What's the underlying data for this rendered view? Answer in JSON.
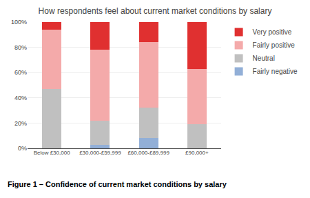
{
  "chart_data": {
    "type": "bar",
    "title": "How respondents feel about current market conditions by salary",
    "caption": "Figure 1 – Confidence of current market conditions by salary",
    "categories": [
      "Below £30,000",
      "£30,000-£59,999",
      "£60,000-£89,999",
      "£90,000+"
    ],
    "series": [
      {
        "name": "Fairly negative",
        "color": "#92afd7",
        "values": [
          0,
          3,
          8,
          0
        ]
      },
      {
        "name": "Neutral",
        "color": "#c0c0c0",
        "values": [
          47,
          19,
          24,
          19
        ]
      },
      {
        "name": "Fairly positive",
        "color": "#f4aaaa",
        "values": [
          47,
          56,
          52,
          44
        ]
      },
      {
        "name": "Very positive",
        "color": "#e03030",
        "values": [
          6,
          22,
          16,
          37
        ]
      }
    ],
    "stacked": true,
    "ylim": [
      0,
      100
    ],
    "yticks": [
      {
        "value": 0,
        "label": "0%"
      },
      {
        "value": 20,
        "label": "20%"
      },
      {
        "value": 40,
        "label": "40%"
      },
      {
        "value": 60,
        "label": "60%"
      },
      {
        "value": 80,
        "label": "80%"
      },
      {
        "value": 100,
        "label": "100%"
      }
    ],
    "grid": true,
    "legend": "right"
  }
}
